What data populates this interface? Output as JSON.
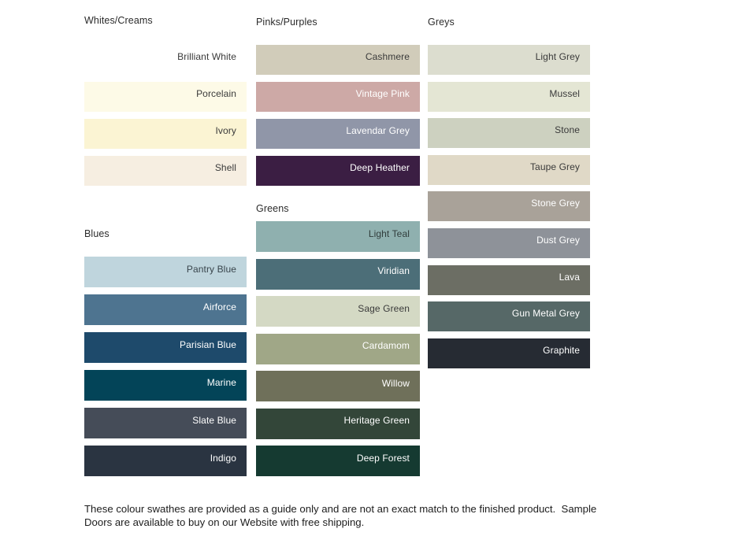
{
  "chart_data": {
    "type": "table",
    "description": "Colour swatch guide grouped by colour family",
    "sections": [
      {
        "title": "Whites/Creams",
        "swatches": [
          {
            "name": "Brilliant White",
            "color": "#FFFFFF",
            "text_color": "#3A3A3A"
          },
          {
            "name": "Porcelain",
            "color": "#FDFAE7",
            "text_color": "#3A3A3A"
          },
          {
            "name": "Ivory",
            "color": "#FBF4D3",
            "text_color": "#3A3A3A"
          },
          {
            "name": "Shell",
            "color": "#F6EEE1",
            "text_color": "#3A3A3A"
          }
        ]
      },
      {
        "title": "Blues",
        "swatches": [
          {
            "name": "Pantry Blue",
            "color": "#BFD5DD",
            "text_color": "#39454C"
          },
          {
            "name": "Airforce",
            "color": "#4E7490",
            "text_color": "#FFFFFF"
          },
          {
            "name": "Parisian Blue",
            "color": "#1E4A6B",
            "text_color": "#FFFFFF"
          },
          {
            "name": "Marine",
            "color": "#034458",
            "text_color": "#FFFFFF"
          },
          {
            "name": "Slate Blue",
            "color": "#454C58",
            "text_color": "#FFFFFF"
          },
          {
            "name": "Indigo",
            "color": "#2A3441",
            "text_color": "#FFFFFF"
          }
        ]
      },
      {
        "title": "Pinks/Purples",
        "swatches": [
          {
            "name": "Cashmere",
            "color": "#D1CCBA",
            "text_color": "#3A3A3A"
          },
          {
            "name": "Vintage Pink",
            "color": "#CDA9A6",
            "text_color": "#FFFFFF"
          },
          {
            "name": "Lavendar Grey",
            "color": "#9096A8",
            "text_color": "#FFFFFF"
          },
          {
            "name": "Deep Heather",
            "color": "#3B1E43",
            "text_color": "#FFFFFF"
          }
        ]
      },
      {
        "title": "Greens",
        "swatches": [
          {
            "name": "Light Teal",
            "color": "#8FB0AF",
            "text_color": "#313D3C"
          },
          {
            "name": "Viridian",
            "color": "#4C6E78",
            "text_color": "#FFFFFF"
          },
          {
            "name": "Sage Green",
            "color": "#D4D9C4",
            "text_color": "#3A3A3A"
          },
          {
            "name": "Cardamom",
            "color": "#A0A787",
            "text_color": "#FFFFFF"
          },
          {
            "name": "Willow",
            "color": "#6F705A",
            "text_color": "#FFFFFF"
          },
          {
            "name": "Heritage Green",
            "color": "#334639",
            "text_color": "#FFFFFF"
          },
          {
            "name": "Deep Forest",
            "color": "#153A31",
            "text_color": "#FFFFFF"
          }
        ]
      },
      {
        "title": "Greys",
        "swatches": [
          {
            "name": "Light Grey",
            "color": "#DCDDCF",
            "text_color": "#3A3A3A"
          },
          {
            "name": "Mussel",
            "color": "#E4E6D4",
            "text_color": "#3A3A3A"
          },
          {
            "name": "Stone",
            "color": "#CDD1C0",
            "text_color": "#3A3A3A"
          },
          {
            "name": "Taupe Grey",
            "color": "#E0D9C7",
            "text_color": "#3A3A3A"
          },
          {
            "name": "Stone Grey",
            "color": "#A9A299",
            "text_color": "#FFFFFF"
          },
          {
            "name": "Dust Grey",
            "color": "#8E9299",
            "text_color": "#FFFFFF"
          },
          {
            "name": "Lava",
            "color": "#6C6E64",
            "text_color": "#FFFFFF"
          },
          {
            "name": "Gun Metal Grey",
            "color": "#566867",
            "text_color": "#FFFFFF"
          },
          {
            "name": "Graphite",
            "color": "#262B33",
            "text_color": "#FFFFFF"
          }
        ]
      }
    ]
  },
  "footer": {
    "lines": [
      "These colour swathes are provided as a guide only and are not an exact match to the finished product.  Sample",
      "Doors are available to buy on our Website with free shipping."
    ]
  },
  "colors": {
    "page_background": "#FFFFFF",
    "heading_text": "#2B2B2B",
    "footer_text": "#1D1D1D"
  }
}
